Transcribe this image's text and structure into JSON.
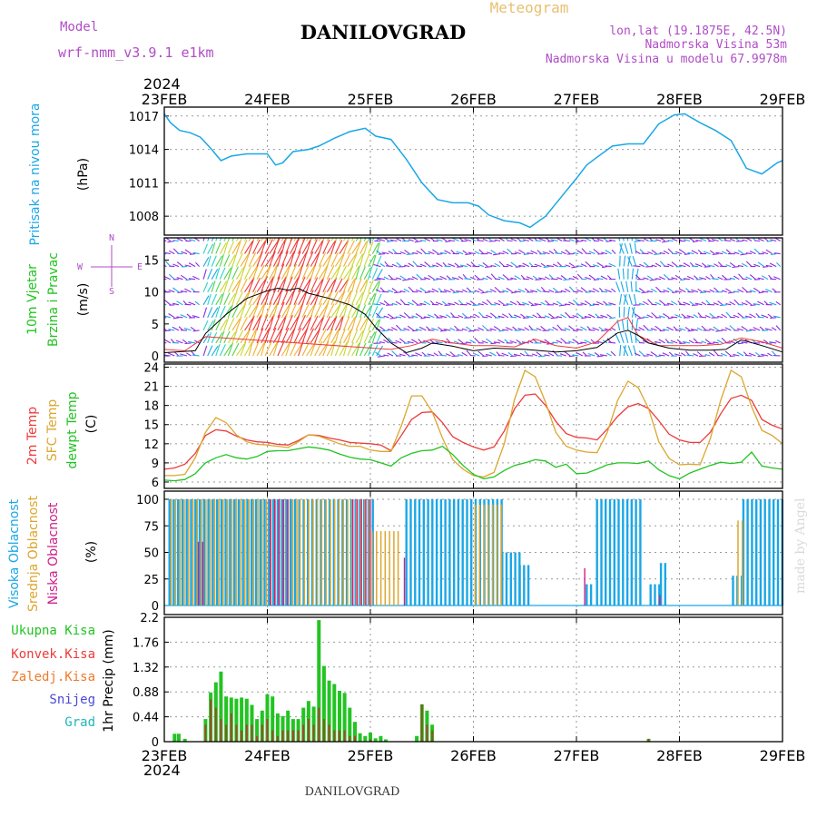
{
  "header": {
    "model_label": "Model",
    "model_name": "wrf-nmm_v3.9.1  e1km",
    "title": "DANILOVGRAD",
    "product": "Meteogram",
    "lonlat": "lon,lat (19.1875E, 42.5N)",
    "altitude": "Nadmorska Visina 53m",
    "model_altitude": "Nadmorska Visina u modelu 67.9978m",
    "credit": "made by Angel",
    "footer_station": "DANILOVGRAD"
  },
  "time_axis": {
    "year": "2024",
    "labels": [
      "23FEB",
      "24FEB",
      "25FEB",
      "26FEB",
      "27FEB",
      "28FEB",
      "29FEB"
    ]
  },
  "colors": {
    "pressure": "#1aa7e6",
    "temp2m": "#ee3a3a",
    "sfc_temp": "#dca62e",
    "dewpoint": "#22c422",
    "cloud_high": "#1aa7e6",
    "cloud_mid": "#dca62e",
    "cloud_low": "#cc1f8a",
    "precip_total": "#22c422",
    "precip_conv": "#ee3a3a",
    "wind_speed": "#000000",
    "wind_gust": "#ee3a3a",
    "compass": "#b04cc7"
  },
  "chart_data": [
    {
      "type": "line",
      "panel": "pressure",
      "ylabel_name": "Pritisak na nivou mora",
      "unit": "(hPa)",
      "yticks": [
        1008,
        1011,
        1014,
        1017
      ],
      "ylim": [
        1006.3,
        1017.8
      ],
      "x_days": [
        0,
        0.06,
        0.15,
        0.25,
        0.35,
        0.45,
        0.55,
        0.65,
        0.8,
        1.0,
        1.08,
        1.15,
        1.25,
        1.4,
        1.5,
        1.65,
        1.8,
        1.95,
        2.05,
        2.2,
        2.35,
        2.5,
        2.65,
        2.8,
        2.95,
        3.05,
        3.15,
        3.3,
        3.45,
        3.55,
        3.7,
        3.85,
        4.0,
        4.1,
        4.2,
        4.35,
        4.5,
        4.65,
        4.8,
        4.95,
        5.05,
        5.2,
        5.35,
        5.5,
        5.65,
        5.8,
        5.95,
        6.0
      ],
      "values": [
        1017.2,
        1016.4,
        1015.7,
        1015.5,
        1015.1,
        1014.1,
        1013.0,
        1013.4,
        1013.6,
        1013.6,
        1012.6,
        1012.8,
        1013.8,
        1014.0,
        1014.3,
        1015.0,
        1015.6,
        1015.9,
        1015.2,
        1014.9,
        1013.1,
        1011.0,
        1009.5,
        1009.2,
        1009.2,
        1008.9,
        1008.1,
        1007.6,
        1007.4,
        1007.0,
        1008.0,
        1009.7,
        1011.4,
        1012.6,
        1013.3,
        1014.3,
        1014.5,
        1014.5,
        1016.3,
        1017.1,
        1017.2,
        1016.4,
        1015.7,
        1014.8,
        1012.3,
        1011.8,
        1012.8,
        1013.0
      ]
    },
    {
      "type": "line",
      "panel": "wind",
      "ylabel_name": "10m Vjetar",
      "ylabel_name2": "Brzina i Pravac",
      "unit": "(m/s)",
      "compass": {
        "n": "N",
        "s": "S",
        "e": "E",
        "w": "W"
      },
      "yticks": [
        0,
        5,
        10,
        15
      ],
      "ylim": [
        -1,
        18.5
      ],
      "x_days": [
        0,
        0.3,
        0.4,
        0.6,
        0.8,
        1.0,
        1.1,
        1.2,
        1.3,
        1.4,
        1.6,
        1.8,
        1.95,
        2.05,
        2.2,
        2.35,
        2.5,
        2.6,
        2.8,
        3.0,
        3.2,
        3.5,
        3.8,
        4.0,
        4.2,
        4.4,
        4.5,
        4.6,
        4.7,
        4.9,
        5.1,
        5.3,
        5.45,
        5.6,
        5.8,
        6.0
      ],
      "values": [
        0.5,
        0.8,
        3.5,
        6.5,
        9.0,
        10.2,
        10.6,
        10.3,
        10.6,
        9.8,
        9.0,
        8.0,
        6.5,
        4.5,
        2.0,
        0.5,
        1.2,
        2.0,
        1.5,
        0.8,
        1.2,
        1.0,
        0.6,
        0.8,
        1.3,
        3.6,
        4.0,
        3.2,
        2.0,
        1.2,
        0.9,
        0.9,
        1.0,
        2.5,
        1.6,
        0.6
      ],
      "gust_x_days": [
        0,
        0.2,
        0.4,
        2.2,
        2.4,
        2.6,
        2.8,
        3.0,
        3.2,
        3.4,
        3.6,
        3.8,
        4.0,
        4.2,
        4.4,
        4.5,
        4.6,
        4.8,
        5.0,
        5.2,
        5.4,
        5.6,
        5.8,
        6.0
      ],
      "gust_values": [
        1.0,
        0.8,
        3.0,
        1.0,
        1.6,
        2.6,
        2.0,
        1.6,
        1.6,
        1.4,
        2.6,
        1.6,
        1.2,
        2.2,
        5.4,
        6.0,
        3.2,
        1.6,
        1.6,
        1.6,
        1.8,
        2.8,
        2.2,
        1.2
      ]
    },
    {
      "type": "line",
      "panel": "temperature",
      "ylabel_names": [
        "2m Temp",
        "SFC Temp",
        "dewpt Temp"
      ],
      "unit": "(C)",
      "yticks": [
        6,
        9,
        12,
        15,
        18,
        21,
        24
      ],
      "ylim": [
        5,
        24.5
      ],
      "x_days": [
        0,
        0.1,
        0.2,
        0.3,
        0.4,
        0.5,
        0.6,
        0.7,
        0.8,
        0.9,
        1.0,
        1.1,
        1.2,
        1.3,
        1.4,
        1.5,
        1.6,
        1.7,
        1.8,
        1.9,
        2.0,
        2.1,
        2.2,
        2.3,
        2.4,
        2.5,
        2.6,
        2.7,
        2.8,
        2.9,
        3.0,
        3.1,
        3.2,
        3.3,
        3.4,
        3.5,
        3.6,
        3.7,
        3.8,
        3.9,
        4.0,
        4.1,
        4.2,
        4.3,
        4.4,
        4.5,
        4.6,
        4.7,
        4.8,
        4.9,
        5.0,
        5.1,
        5.2,
        5.3,
        5.4,
        5.5,
        5.6,
        5.7,
        5.8,
        5.9,
        6.0
      ],
      "series": [
        {
          "key": "temp2m",
          "values": [
            8.0,
            8.2,
            8.8,
            10.5,
            13.3,
            14.2,
            14.0,
            13.2,
            12.6,
            12.3,
            12.2,
            11.9,
            11.8,
            12.5,
            13.4,
            13.3,
            12.9,
            12.6,
            12.2,
            12.1,
            12.0,
            11.8,
            10.9,
            13.3,
            15.8,
            16.9,
            17.0,
            15.3,
            13.1,
            12.2,
            11.5,
            11.0,
            11.5,
            14.0,
            17.5,
            19.6,
            19.8,
            18.0,
            15.5,
            13.6,
            13.0,
            12.9,
            12.6,
            14.3,
            16.3,
            17.8,
            18.3,
            17.5,
            15.6,
            13.5,
            12.6,
            12.2,
            12.2,
            13.8,
            16.7,
            19.1,
            19.6,
            18.8,
            15.8,
            14.9,
            14.3
          ]
        },
        {
          "key": "sfc_temp",
          "values": [
            7.0,
            7.0,
            7.2,
            9.8,
            13.8,
            16.1,
            15.3,
            13.4,
            12.3,
            11.9,
            11.8,
            11.6,
            11.4,
            12.3,
            13.4,
            13.2,
            12.6,
            12.0,
            11.6,
            11.6,
            11.0,
            10.8,
            10.8,
            14.8,
            19.5,
            19.5,
            17.0,
            12.9,
            9.5,
            8.0,
            7.0,
            6.8,
            7.5,
            12.0,
            19.0,
            23.5,
            22.5,
            18.5,
            13.8,
            11.6,
            11.0,
            10.7,
            10.6,
            13.8,
            18.8,
            21.8,
            20.8,
            17.5,
            12.3,
            9.7,
            8.7,
            8.8,
            8.7,
            12.8,
            18.8,
            23.5,
            22.5,
            17.8,
            14.1,
            13.3,
            12.0
          ]
        },
        {
          "key": "dewpoint",
          "values": [
            6.3,
            6.2,
            6.4,
            7.3,
            9.0,
            9.8,
            10.3,
            9.8,
            9.6,
            10.0,
            10.8,
            10.9,
            10.9,
            11.2,
            11.5,
            11.3,
            11.0,
            10.4,
            9.9,
            9.6,
            9.5,
            9.0,
            8.5,
            9.8,
            10.5,
            10.9,
            11.0,
            11.6,
            10.3,
            8.6,
            7.2,
            6.5,
            6.8,
            7.8,
            8.6,
            9.0,
            9.5,
            9.3,
            8.3,
            8.8,
            7.3,
            7.4,
            8.0,
            8.7,
            9.0,
            9.0,
            8.9,
            9.3,
            7.9,
            7.0,
            6.5,
            7.4,
            8.0,
            8.6,
            9.1,
            8.9,
            9.1,
            10.7,
            8.5,
            8.2,
            8.0
          ]
        }
      ]
    },
    {
      "type": "bar",
      "panel": "clouds",
      "ylabel_names": [
        "Visoka Oblacnost",
        "Srednja Oblacnost",
        "Niska Oblacnost"
      ],
      "unit": "(%)",
      "yticks": [
        0,
        25,
        50,
        75,
        100
      ],
      "ylim": [
        0,
        100
      ],
      "high_segments": [
        {
          "from": 0.05,
          "to": 2.05,
          "value": 100
        },
        {
          "from": 2.35,
          "to": 3.28,
          "value": 100
        },
        {
          "from": 3.28,
          "to": 3.45,
          "value": 50
        },
        {
          "from": 3.45,
          "to": 3.55,
          "value": 38
        },
        {
          "from": 4.1,
          "to": 4.18,
          "value": 20
        },
        {
          "from": 4.2,
          "to": 4.65,
          "value": 100
        },
        {
          "from": 4.72,
          "to": 4.82,
          "value": 20
        },
        {
          "from": 4.82,
          "to": 4.88,
          "value": 40
        },
        {
          "from": 5.52,
          "to": 5.62,
          "value": 28
        },
        {
          "from": 5.62,
          "to": 6.0,
          "value": 100
        }
      ],
      "mid_segments": [
        {
          "from": 0.05,
          "to": 1.3,
          "value": 100
        },
        {
          "from": 1.3,
          "to": 2.0,
          "value": 100
        },
        {
          "from": 2.0,
          "to": 2.3,
          "value": 70
        },
        {
          "from": 3.0,
          "to": 3.3,
          "value": 95
        },
        {
          "from": 5.55,
          "to": 5.65,
          "value": 80
        }
      ],
      "low_segments": [
        {
          "from": 0.3,
          "to": 0.4,
          "value": 60
        },
        {
          "from": 1.0,
          "to": 1.2,
          "value": 100
        },
        {
          "from": 1.8,
          "to": 2.0,
          "value": 100
        },
        {
          "from": 2.3,
          "to": 2.35,
          "value": 45
        },
        {
          "from": 4.05,
          "to": 4.09,
          "value": 35
        },
        {
          "from": 4.78,
          "to": 4.82,
          "value": 10
        }
      ]
    },
    {
      "type": "bar",
      "panel": "precipitation",
      "legend": [
        "Ukupna Kisa",
        "Konvek.Kisa",
        "Zaledj.Kisa",
        "Snijeg",
        "Grad"
      ],
      "legend_colors": [
        "#22c422",
        "#ee3a3a",
        "#ef7a2a",
        "#4a4ad6",
        "#1fb8b8"
      ],
      "ylabel": "1hr Precip (mm)",
      "yticks": [
        0,
        0.44,
        0.88,
        1.32,
        1.76,
        2.2
      ],
      "ylim": [
        0,
        2.2
      ],
      "x_days": [
        0.1,
        0.14,
        0.2,
        0.4,
        0.45,
        0.5,
        0.55,
        0.6,
        0.65,
        0.7,
        0.75,
        0.8,
        0.85,
        0.9,
        0.95,
        1.0,
        1.05,
        1.1,
        1.15,
        1.2,
        1.25,
        1.3,
        1.35,
        1.4,
        1.45,
        1.5,
        1.55,
        1.6,
        1.65,
        1.7,
        1.75,
        1.8,
        1.85,
        1.9,
        1.95,
        2.0,
        2.05,
        2.1,
        2.15,
        2.45,
        2.5,
        2.55,
        2.6,
        4.7
      ],
      "values": [
        0.14,
        0.14,
        0.05,
        0.4,
        0.87,
        1.05,
        1.24,
        0.8,
        0.78,
        0.76,
        0.78,
        0.76,
        0.65,
        0.4,
        0.55,
        0.84,
        0.8,
        0.5,
        0.45,
        0.55,
        0.4,
        0.4,
        0.6,
        0.72,
        0.62,
        2.15,
        1.34,
        1.08,
        1.02,
        0.9,
        0.86,
        0.6,
        0.35,
        0.15,
        0.1,
        0.16,
        0.06,
        0.1,
        0.04,
        0.1,
        0.66,
        0.55,
        0.3,
        0.05
      ],
      "conv_values": [
        0,
        0,
        0,
        0.3,
        0.75,
        0.6,
        0.4,
        0.3,
        0.5,
        0.3,
        0.2,
        0.3,
        0.3,
        0.1,
        0.3,
        0.4,
        0.2,
        0.1,
        0.2,
        0.2,
        0.2,
        0.2,
        0.3,
        0.4,
        0.3,
        0.6,
        0.4,
        0.3,
        0.2,
        0.2,
        0.2,
        0.1,
        0.1,
        0,
        0,
        0.04,
        0,
        0,
        0,
        0,
        0.66,
        0.3,
        0.2,
        0.05
      ]
    }
  ]
}
